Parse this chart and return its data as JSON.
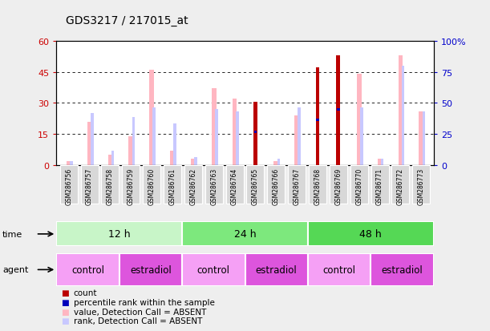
{
  "title": "GDS3217 / 217015_at",
  "samples": [
    "GSM286756",
    "GSM286757",
    "GSM286758",
    "GSM286759",
    "GSM286760",
    "GSM286761",
    "GSM286762",
    "GSM286763",
    "GSM286764",
    "GSM286765",
    "GSM286766",
    "GSM286767",
    "GSM286768",
    "GSM286769",
    "GSM286770",
    "GSM286771",
    "GSM286772",
    "GSM286773"
  ],
  "count_values": [
    0,
    0,
    0,
    0,
    0,
    0,
    0,
    0,
    0,
    30.5,
    0,
    0,
    47,
    53,
    0,
    0,
    0,
    0
  ],
  "rank_values": [
    0,
    0,
    0,
    0,
    0,
    0,
    0,
    0,
    0,
    16,
    0,
    0,
    22,
    27,
    0,
    0,
    0,
    0
  ],
  "pink_values": [
    2,
    21,
    5,
    14,
    46,
    7,
    3,
    37,
    32,
    0,
    2,
    24,
    0,
    0,
    44,
    3,
    53,
    26
  ],
  "lightblue_values": [
    2,
    25,
    7,
    23,
    28,
    20,
    4,
    27,
    26,
    0,
    3,
    28,
    0,
    0,
    28,
    3,
    48,
    26
  ],
  "ylim_left": [
    0,
    60
  ],
  "ylim_right": [
    0,
    100
  ],
  "yticks_left": [
    0,
    15,
    30,
    45,
    60
  ],
  "yticks_right": [
    0,
    25,
    50,
    75,
    100
  ],
  "ytick_labels_left": [
    "0",
    "15",
    "30",
    "45",
    "60"
  ],
  "ytick_labels_right": [
    "0",
    "25",
    "50",
    "75",
    "100%"
  ],
  "time_groups": [
    {
      "label": "12 h",
      "start": 0,
      "end": 6,
      "color": "#c8f5c8"
    },
    {
      "label": "24 h",
      "start": 6,
      "end": 12,
      "color": "#7de87d"
    },
    {
      "label": "48 h",
      "start": 12,
      "end": 18,
      "color": "#55d855"
    }
  ],
  "agent_groups": [
    {
      "label": "control",
      "start": 0,
      "end": 3,
      "color": "#f5a0f5"
    },
    {
      "label": "estradiol",
      "start": 3,
      "end": 6,
      "color": "#dd55dd"
    },
    {
      "label": "control",
      "start": 6,
      "end": 9,
      "color": "#f5a0f5"
    },
    {
      "label": "estradiol",
      "start": 9,
      "end": 12,
      "color": "#dd55dd"
    },
    {
      "label": "control",
      "start": 12,
      "end": 15,
      "color": "#f5a0f5"
    },
    {
      "label": "estradiol",
      "start": 15,
      "end": 18,
      "color": "#dd55dd"
    }
  ],
  "count_color": "#bb0000",
  "rank_color": "#0000bb",
  "pink_color": "#ffb6c1",
  "lightblue_color": "#c8c8ff",
  "bg_color": "#f0f0f0",
  "plot_bg": "#ffffff",
  "left_tick_color": "#cc0000",
  "right_tick_color": "#0000cc",
  "cell_bg": "#d8d8d8",
  "fig_bg": "#eeeeee"
}
